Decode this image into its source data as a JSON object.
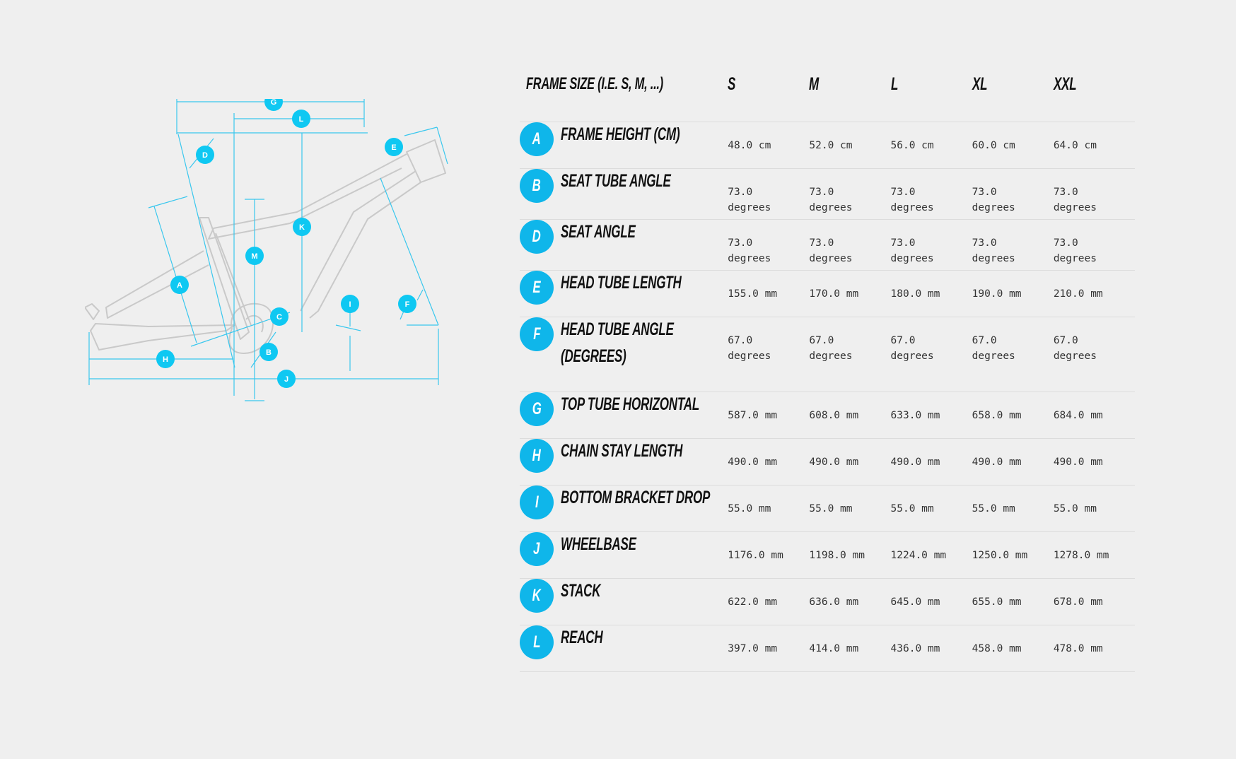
{
  "table": {
    "header_label": "FRAME SIZE (I.E. S, M, ...)",
    "sizes": [
      "S",
      "M",
      "L",
      "XL",
      "XXL"
    ],
    "rows": [
      {
        "letter": "A",
        "label": "FRAME HEIGHT (CM)",
        "values": [
          "48.0 cm",
          "52.0 cm",
          "56.0 cm",
          "60.0 cm",
          "64.0 cm"
        ]
      },
      {
        "letter": "B",
        "label": "SEAT TUBE ANGLE",
        "values": [
          "73.0 degrees",
          "73.0 degrees",
          "73.0 degrees",
          "73.0 degrees",
          "73.0 degrees"
        ]
      },
      {
        "letter": "D",
        "label": "SEAT ANGLE",
        "values": [
          "73.0 degrees",
          "73.0 degrees",
          "73.0 degrees",
          "73.0 degrees",
          "73.0 degrees"
        ]
      },
      {
        "letter": "E",
        "label": "HEAD TUBE LENGTH",
        "values": [
          "155.0 mm",
          "170.0 mm",
          "180.0 mm",
          "190.0 mm",
          "210.0 mm"
        ]
      },
      {
        "letter": "F",
        "label": "HEAD TUBE ANGLE (DEGREES)",
        "values": [
          "67.0 degrees",
          "67.0 degrees",
          "67.0 degrees",
          "67.0 degrees",
          "67.0 degrees"
        ]
      },
      {
        "letter": "G",
        "label": "TOP TUBE HORIZONTAL",
        "values": [
          "587.0 mm",
          "608.0 mm",
          "633.0 mm",
          "658.0 mm",
          "684.0 mm"
        ]
      },
      {
        "letter": "H",
        "label": "CHAIN STAY LENGTH",
        "values": [
          "490.0 mm",
          "490.0 mm",
          "490.0 mm",
          "490.0 mm",
          "490.0 mm"
        ]
      },
      {
        "letter": "I",
        "label": "BOTTOM BRACKET DROP",
        "values": [
          "55.0 mm",
          "55.0 mm",
          "55.0 mm",
          "55.0 mm",
          "55.0 mm"
        ]
      },
      {
        "letter": "J",
        "label": "WHEELBASE",
        "values": [
          "1176.0 mm",
          "1198.0 mm",
          "1224.0 mm",
          "1250.0 mm",
          "1278.0 mm"
        ]
      },
      {
        "letter": "K",
        "label": "STACK",
        "values": [
          "622.0 mm",
          "636.0 mm",
          "645.0 mm",
          "655.0 mm",
          "678.0 mm"
        ]
      },
      {
        "letter": "L",
        "label": "REACH",
        "values": [
          "397.0 mm",
          "414.0 mm",
          "436.0 mm",
          "458.0 mm",
          "478.0 mm"
        ]
      }
    ]
  },
  "diagram": {
    "markers": [
      "A",
      "B",
      "C",
      "D",
      "E",
      "F",
      "G",
      "H",
      "I",
      "J",
      "K",
      "L",
      "M"
    ]
  },
  "colors": {
    "accent": "#0fb6ea",
    "dimension_line": "#39c7ee",
    "frame_outline": "#c8c8c8",
    "background": "#efefef"
  }
}
